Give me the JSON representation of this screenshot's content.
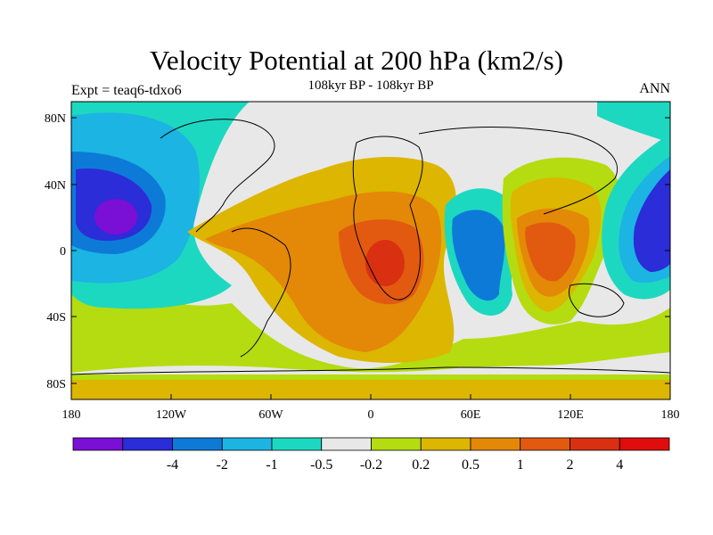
{
  "title": "Velocity Potential at 200 hPa (km2/s)",
  "subtitle": "108kyr BP - 108kyr BP",
  "left_label": "Expt = teaq6-tdxo6",
  "right_label": "ANN",
  "y_ticks": [
    "80N",
    "40N",
    "0",
    "40S",
    "80S"
  ],
  "x_ticks": [
    "180",
    "120W",
    "60W",
    "0",
    "60E",
    "120E",
    "180"
  ],
  "colorbar": {
    "colors": [
      "#7a0fd6",
      "#2a2dd8",
      "#0d7ad8",
      "#1bb4e3",
      "#1dd8c0",
      "#e8e8e8",
      "#b4dc10",
      "#dcb600",
      "#e48808",
      "#e25a10",
      "#d83010",
      "#e00d0d"
    ],
    "labels": [
      "-4",
      "-2",
      "-1",
      "-0.5",
      "-0.2",
      "0.2",
      "0.5",
      "1",
      "2",
      "4"
    ]
  },
  "colors": {
    "land_outline": "#000000",
    "background": "#e8e8e8"
  }
}
